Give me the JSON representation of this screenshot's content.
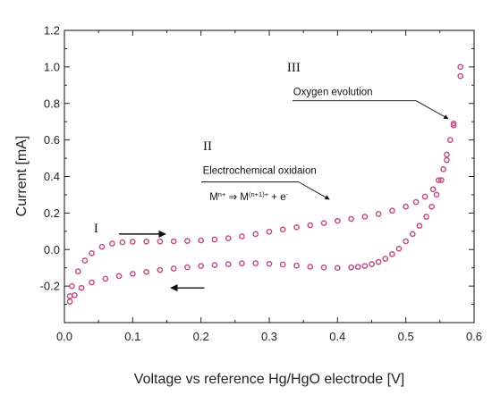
{
  "chart_data": {
    "type": "scatter",
    "xlabel": "Voltage vs reference Hg/HgO electrode [V]",
    "ylabel": "Current [mA]",
    "xlim": [
      0.0,
      0.6
    ],
    "ylim": [
      -0.4,
      1.2
    ],
    "xticks": [
      0.0,
      0.1,
      0.2,
      0.3,
      0.4,
      0.5,
      0.6
    ],
    "xtick_labels": [
      "0.0",
      "0.1",
      "0.2",
      "0.3",
      "0.4",
      "0.5",
      "0.6"
    ],
    "yticks": [
      -0.4,
      -0.2,
      0.0,
      0.2,
      0.4,
      0.6,
      0.8,
      1.0,
      1.2
    ],
    "ytick_labels": [
      "",
      "-0.2",
      "0.0",
      "0.2",
      "0.4",
      "0.6",
      "0.8",
      "1.0",
      "1.2"
    ],
    "grid": false,
    "marker_color": "#c0508c",
    "series": [
      {
        "x": [
          0.008,
          0.011,
          0.02,
          0.03,
          0.04,
          0.055,
          0.07,
          0.085,
          0.1,
          0.12,
          0.14,
          0.16,
          0.18,
          0.2,
          0.22,
          0.24,
          0.26,
          0.28,
          0.3,
          0.32,
          0.34,
          0.36,
          0.38,
          0.4,
          0.42,
          0.44,
          0.46,
          0.48,
          0.5,
          0.515,
          0.528,
          0.54,
          0.548,
          0.555,
          0.56,
          0.565,
          0.57,
          0.58
        ],
        "y": [
          -0.255,
          -0.2,
          -0.12,
          -0.06,
          -0.02,
          0.015,
          0.033,
          0.04,
          0.043,
          0.044,
          0.044,
          0.045,
          0.047,
          0.05,
          0.055,
          0.062,
          0.072,
          0.085,
          0.098,
          0.11,
          0.122,
          0.133,
          0.145,
          0.157,
          0.168,
          0.18,
          0.195,
          0.213,
          0.235,
          0.26,
          0.29,
          0.33,
          0.38,
          0.44,
          0.52,
          0.6,
          0.69,
          1.0
        ]
      },
      {
        "x": [
          0.58,
          0.57,
          0.56,
          0.552,
          0.545,
          0.538,
          0.53,
          0.52,
          0.51,
          0.5,
          0.49,
          0.48,
          0.47,
          0.46,
          0.45,
          0.44,
          0.43,
          0.42,
          0.4,
          0.38,
          0.36,
          0.34,
          0.32,
          0.3,
          0.28,
          0.26,
          0.24,
          0.22,
          0.2,
          0.18,
          0.16,
          0.14,
          0.12,
          0.1,
          0.08,
          0.06,
          0.04,
          0.025,
          0.015,
          0.008
        ],
        "y": [
          0.95,
          0.68,
          0.49,
          0.38,
          0.3,
          0.235,
          0.18,
          0.13,
          0.085,
          0.045,
          0.005,
          -0.025,
          -0.05,
          -0.068,
          -0.08,
          -0.09,
          -0.095,
          -0.098,
          -0.1,
          -0.098,
          -0.094,
          -0.088,
          -0.082,
          -0.078,
          -0.075,
          -0.076,
          -0.08,
          -0.085,
          -0.09,
          -0.097,
          -0.104,
          -0.112,
          -0.122,
          -0.133,
          -0.145,
          -0.16,
          -0.18,
          -0.21,
          -0.25,
          -0.285
        ]
      }
    ],
    "annotations": [
      {
        "text": "I",
        "x": 0.043,
        "y": 0.095
      },
      {
        "text": "II",
        "x": 0.203,
        "y": 0.545
      },
      {
        "text": "III",
        "x": 0.326,
        "y": 0.975
      },
      {
        "text": "Oxygen evolution",
        "x": 0.335,
        "y": 0.845
      },
      {
        "text": "Electrochemical oxidaion",
        "x": 0.2025,
        "y": 0.415
      },
      {
        "mainL": "M",
        "supL": "n+",
        "arrow": "⇒",
        "mainR": "M",
        "supR": "(n+1)+",
        "tail": "+ e",
        "supT": "-",
        "x": 0.2125,
        "y": 0.27
      }
    ]
  }
}
